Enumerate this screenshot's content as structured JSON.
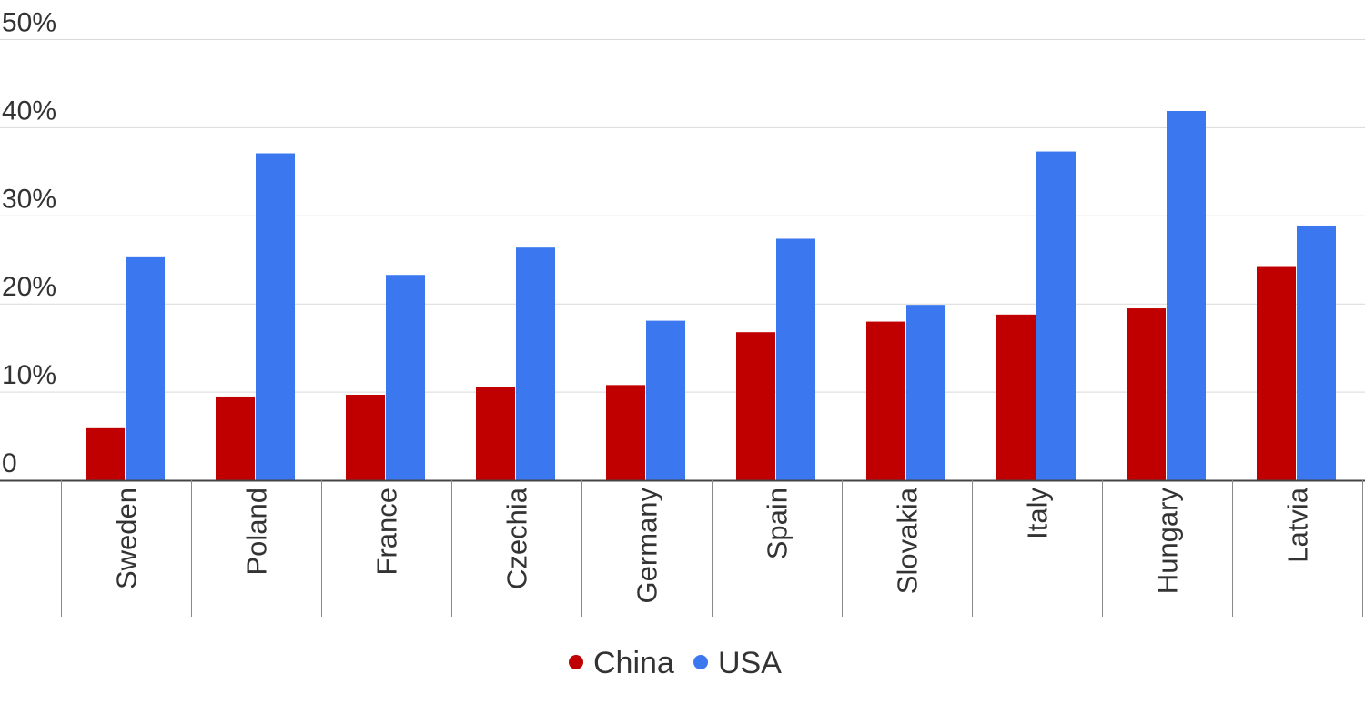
{
  "chart_data": {
    "type": "bar",
    "categories": [
      "Sweden",
      "Poland",
      "France",
      "Czechia",
      "Germany",
      "Spain",
      "Slovakia",
      "Italy",
      "Hungary",
      "Latvia"
    ],
    "series": [
      {
        "name": "China",
        "color": "#c00000",
        "values": [
          5.9,
          9.5,
          9.7,
          10.6,
          10.8,
          16.8,
          18.0,
          18.8,
          19.5,
          24.3
        ]
      },
      {
        "name": "USA",
        "color": "#3b78f0",
        "values": [
          25.3,
          37.1,
          23.3,
          26.4,
          18.1,
          27.4,
          19.9,
          37.3,
          41.9,
          28.9
        ]
      }
    ],
    "ylim": [
      0,
      50
    ],
    "yticks": [
      {
        "value": 0,
        "label": "0"
      },
      {
        "value": 10,
        "label": "10%"
      },
      {
        "value": 20,
        "label": "20%"
      },
      {
        "value": 30,
        "label": "30%"
      },
      {
        "value": 40,
        "label": "40%"
      },
      {
        "value": 50,
        "label": "50%"
      }
    ],
    "grid": true,
    "legend_position": "bottom-center",
    "title": "",
    "xlabel": "",
    "ylabel": ""
  }
}
